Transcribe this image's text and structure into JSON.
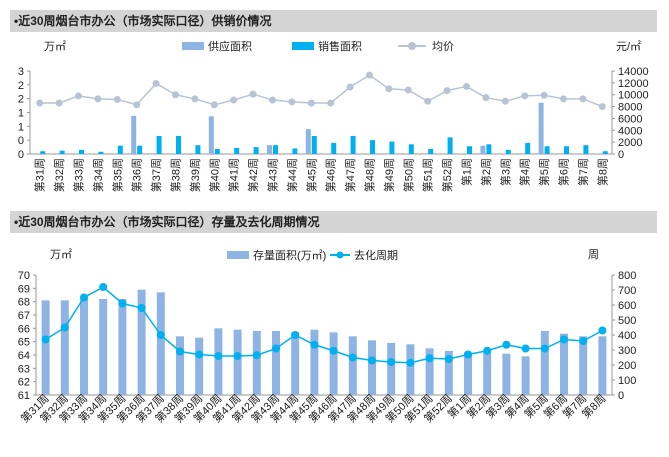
{
  "panel1": {
    "title": "•近30周烟台市办公（市场实际口径）供销价情况",
    "left_unit": "万㎡",
    "right_unit": "元/㎡",
    "chart_data": {
      "type": "bar+line",
      "categories": [
        "第31周",
        "第32周",
        "第33周",
        "第34周",
        "第35周",
        "第36周",
        "第37周",
        "第38周",
        "第39周",
        "第40周",
        "第41周",
        "第42周",
        "第43周",
        "第44周",
        "第45周",
        "第46周",
        "第47周",
        "第48周",
        "第49周",
        "第50周",
        "第51周",
        "第52周",
        "第1周",
        "第2周",
        "第3周",
        "第4周",
        "第5周",
        "第6周",
        "第7周",
        "第8周"
      ],
      "series": [
        {
          "name": "供应面积",
          "axis": "left",
          "color": "#8eb4e3",
          "values": [
            0.0,
            0.0,
            0.0,
            0.0,
            0.0,
            1.38,
            0.0,
            0.0,
            0.0,
            1.36,
            0.0,
            0.0,
            0.32,
            0.0,
            0.9,
            0.0,
            0.0,
            0.0,
            0.0,
            0.0,
            0.0,
            0.0,
            0.0,
            0.3,
            0.0,
            0.0,
            1.85,
            0.0,
            0.0,
            0.0
          ]
        },
        {
          "name": "销售面积",
          "axis": "left",
          "color": "#00b0f0",
          "values": [
            0.1,
            0.12,
            0.15,
            0.08,
            0.3,
            0.3,
            0.65,
            0.65,
            0.32,
            0.18,
            0.22,
            0.25,
            0.32,
            0.2,
            0.65,
            0.4,
            0.65,
            0.5,
            0.45,
            0.35,
            0.18,
            0.6,
            0.28,
            0.35,
            0.15,
            0.4,
            0.28,
            0.28,
            0.32,
            0.1
          ]
        },
        {
          "name": "均价",
          "axis": "right",
          "type": "line",
          "color": "#b8c4d6",
          "values": [
            8600,
            8600,
            9800,
            9300,
            9200,
            8300,
            11900,
            10000,
            9300,
            8300,
            9100,
            10100,
            9100,
            8800,
            8600,
            8600,
            11300,
            13300,
            11000,
            10800,
            8900,
            10700,
            11400,
            9500,
            8900,
            9800,
            9900,
            9300,
            9300,
            8000
          ]
        }
      ],
      "ylim_left": [
        0,
        3
      ],
      "yticks_left": [
        "3",
        "2",
        "2",
        "1",
        "1",
        "0",
        "0"
      ],
      "ylim_right": [
        0,
        14000
      ],
      "yticks_right": [
        "14000",
        "12000",
        "10000",
        "8000",
        "6000",
        "4000",
        "2000",
        "0"
      ]
    }
  },
  "panel2": {
    "title": "•近30周烟台市办公（市场实际口径）存量及去化周期情况",
    "left_unit": "万㎡",
    "right_unit": "周",
    "chart_data": {
      "type": "bar+line",
      "categories": [
        "第31周",
        "第32周",
        "第33周",
        "第34周",
        "第35周",
        "第36周",
        "第37周",
        "第38周",
        "第39周",
        "第40周",
        "第41周",
        "第42周",
        "第43周",
        "第44周",
        "第45周",
        "第46周",
        "第47周",
        "第48周",
        "第49周",
        "第50周",
        "第51周",
        "第52周",
        "第1周",
        "第2周",
        "第3周",
        "第4周",
        "第5周",
        "第6周",
        "第7周",
        "第8周"
      ],
      "series": [
        {
          "name": "存量面积(万㎡)",
          "axis": "left",
          "color": "#8eb4e3",
          "values": [
            68.1,
            68.1,
            68.2,
            68.2,
            68.2,
            68.9,
            68.7,
            65.4,
            65.3,
            66.0,
            65.9,
            65.8,
            65.8,
            65.7,
            65.9,
            65.7,
            65.4,
            65.1,
            64.9,
            64.8,
            64.5,
            64.3,
            64.2,
            64.3,
            64.1,
            63.9,
            65.8,
            65.6,
            65.4,
            65.4
          ]
        },
        {
          "name": "去化周期",
          "axis": "right",
          "type": "line",
          "color": "#00b0f0",
          "values": [
            370,
            450,
            650,
            720,
            610,
            580,
            400,
            290,
            270,
            260,
            260,
            265,
            310,
            400,
            335,
            295,
            250,
            230,
            220,
            215,
            245,
            240,
            270,
            295,
            335,
            310,
            310,
            370,
            360,
            430
          ]
        }
      ],
      "ylim_left": [
        61,
        70
      ],
      "yticks_left": [
        "70",
        "69",
        "68",
        "67",
        "66",
        "65",
        "64",
        "63",
        "62",
        "61"
      ],
      "ylim_right": [
        0,
        800
      ],
      "yticks_right": [
        "800",
        "700",
        "600",
        "500",
        "400",
        "300",
        "200",
        "100",
        "0"
      ]
    }
  }
}
